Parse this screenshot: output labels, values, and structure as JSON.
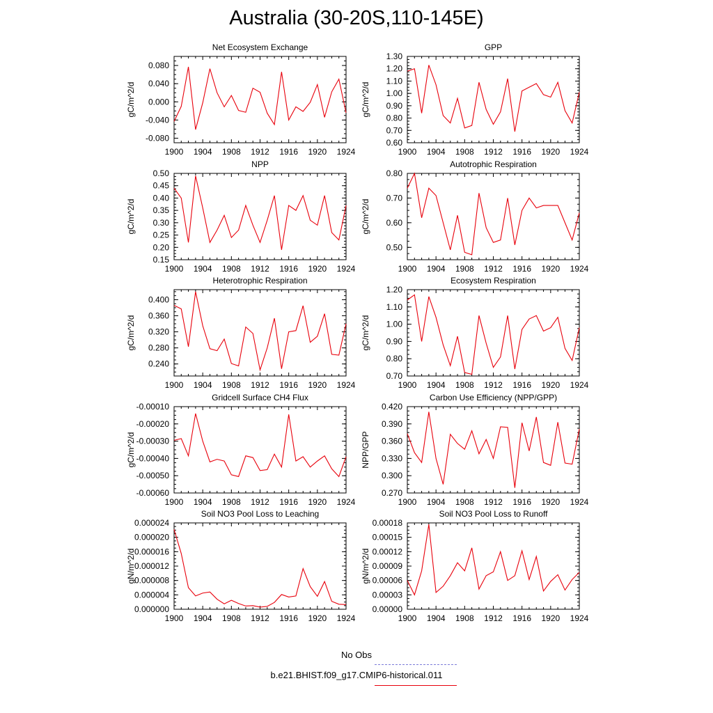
{
  "title": "Australia (30-20S,110-145E)",
  "colors": {
    "series": "#e8000b",
    "obs": "#7b7bd8",
    "axis": "#000000"
  },
  "legend": {
    "placement": "bottom-center",
    "items": [
      {
        "label": "No Obs",
        "style": "dashed",
        "color": "#7b7bd8"
      },
      {
        "label": "b.e21.BHIST.f09_g17.CMIP6-historical.011",
        "style": "solid",
        "color": "#e8000b"
      }
    ]
  },
  "chart_data": [
    {
      "type": "line",
      "title": "Net Ecosystem Exchange",
      "xlabel": "",
      "ylabel": "gC/m^2/d",
      "xlim": [
        1900,
        1924
      ],
      "ylim": [
        -0.09,
        0.1
      ],
      "xticks": [
        "1900",
        "1904",
        "1908",
        "1912",
        "1916",
        "1920",
        "1924"
      ],
      "yticks": [
        "-0.080",
        "-0.040",
        "0.000",
        "0.040",
        "0.080"
      ],
      "grid": false,
      "x": [
        1900,
        1901,
        1902,
        1903,
        1904,
        1905,
        1906,
        1907,
        1908,
        1909,
        1910,
        1911,
        1912,
        1913,
        1914,
        1915,
        1916,
        1917,
        1918,
        1919,
        1920,
        1921,
        1922,
        1923,
        1924
      ],
      "values": [
        -0.043,
        -0.01,
        0.077,
        -0.061,
        -0.002,
        0.073,
        0.02,
        -0.011,
        0.014,
        -0.019,
        -0.023,
        0.03,
        0.021,
        -0.025,
        -0.05,
        0.066,
        -0.04,
        -0.011,
        -0.021,
        -0.001,
        0.038,
        -0.034,
        0.022,
        0.05,
        -0.024
      ]
    },
    {
      "type": "line",
      "title": "GPP",
      "xlabel": "",
      "ylabel": "gC/m^2/d",
      "xlim": [
        1900,
        1924
      ],
      "ylim": [
        0.6,
        1.3
      ],
      "xticks": [
        "1900",
        "1904",
        "1908",
        "1912",
        "1916",
        "1920",
        "1924"
      ],
      "yticks": [
        "0.60",
        "0.70",
        "0.80",
        "0.90",
        "1.00",
        "1.10",
        "1.20",
        "1.30"
      ],
      "grid": false,
      "x": [
        1900,
        1901,
        1902,
        1903,
        1904,
        1905,
        1906,
        1907,
        1908,
        1909,
        1910,
        1911,
        1912,
        1913,
        1914,
        1915,
        1916,
        1917,
        1918,
        1919,
        1920,
        1921,
        1922,
        1923,
        1924
      ],
      "values": [
        1.18,
        1.2,
        0.84,
        1.23,
        1.07,
        0.82,
        0.76,
        0.96,
        0.72,
        0.74,
        1.09,
        0.87,
        0.75,
        0.85,
        1.12,
        0.69,
        1.02,
        1.05,
        1.08,
        0.99,
        0.97,
        1.09,
        0.86,
        0.76,
        1.01
      ]
    },
    {
      "type": "line",
      "title": "NPP",
      "xlabel": "",
      "ylabel": "gC/m^2/d",
      "xlim": [
        1900,
        1924
      ],
      "ylim": [
        0.15,
        0.5
      ],
      "xticks": [
        "1900",
        "1904",
        "1908",
        "1912",
        "1916",
        "1920",
        "1924"
      ],
      "yticks": [
        "0.15",
        "0.20",
        "0.25",
        "0.30",
        "0.35",
        "0.40",
        "0.45",
        "0.50"
      ],
      "grid": false,
      "x": [
        1900,
        1901,
        1902,
        1903,
        1904,
        1905,
        1906,
        1907,
        1908,
        1909,
        1910,
        1911,
        1912,
        1913,
        1914,
        1915,
        1916,
        1917,
        1918,
        1919,
        1920,
        1921,
        1922,
        1923,
        1924
      ],
      "values": [
        0.44,
        0.4,
        0.22,
        0.49,
        0.36,
        0.22,
        0.27,
        0.33,
        0.24,
        0.27,
        0.37,
        0.29,
        0.22,
        0.31,
        0.41,
        0.19,
        0.37,
        0.35,
        0.41,
        0.31,
        0.29,
        0.41,
        0.26,
        0.23,
        0.37
      ]
    },
    {
      "type": "line",
      "title": "Autotrophic Respiration",
      "xlabel": "",
      "ylabel": "gC/m^2/d",
      "xlim": [
        1900,
        1924
      ],
      "ylim": [
        0.45,
        0.8
      ],
      "xticks": [
        "1900",
        "1904",
        "1908",
        "1912",
        "1916",
        "1920",
        "1924"
      ],
      "yticks": [
        "0.50",
        "0.60",
        "0.70",
        "0.80"
      ],
      "grid": false,
      "x": [
        1900,
        1901,
        1902,
        1903,
        1904,
        1905,
        1906,
        1907,
        1908,
        1909,
        1910,
        1911,
        1912,
        1913,
        1914,
        1915,
        1916,
        1917,
        1918,
        1919,
        1920,
        1921,
        1922,
        1923,
        1924
      ],
      "values": [
        0.74,
        0.8,
        0.62,
        0.74,
        0.71,
        0.6,
        0.49,
        0.63,
        0.48,
        0.47,
        0.72,
        0.58,
        0.52,
        0.53,
        0.7,
        0.51,
        0.65,
        0.7,
        0.66,
        0.67,
        0.67,
        0.67,
        0.6,
        0.53,
        0.64
      ]
    },
    {
      "type": "line",
      "title": "Heterotrophic Respiration",
      "xlabel": "",
      "ylabel": "gC/m^2/d",
      "xlim": [
        1900,
        1924
      ],
      "ylim": [
        0.21,
        0.425
      ],
      "xticks": [
        "1900",
        "1904",
        "1908",
        "1912",
        "1916",
        "1920",
        "1924"
      ],
      "yticks": [
        "0.240",
        "0.280",
        "0.320",
        "0.360",
        "0.400"
      ],
      "grid": false,
      "x": [
        1900,
        1901,
        1902,
        1903,
        1904,
        1905,
        1906,
        1907,
        1908,
        1909,
        1910,
        1911,
        1912,
        1913,
        1914,
        1915,
        1916,
        1917,
        1918,
        1919,
        1920,
        1921,
        1922,
        1923,
        1924
      ],
      "values": [
        0.386,
        0.377,
        0.283,
        0.42,
        0.335,
        0.278,
        0.273,
        0.302,
        0.241,
        0.235,
        0.332,
        0.316,
        0.225,
        0.28,
        0.354,
        0.228,
        0.32,
        0.323,
        0.385,
        0.294,
        0.309,
        0.365,
        0.264,
        0.262,
        0.34
      ]
    },
    {
      "type": "line",
      "title": "Ecosystem Respiration",
      "xlabel": "",
      "ylabel": "gC/m^2/d",
      "xlim": [
        1900,
        1924
      ],
      "ylim": [
        0.7,
        1.2
      ],
      "xticks": [
        "1900",
        "1904",
        "1908",
        "1912",
        "1916",
        "1920",
        "1924"
      ],
      "yticks": [
        "0.70",
        "0.80",
        "0.90",
        "1.00",
        "1.10",
        "1.20"
      ],
      "grid": false,
      "x": [
        1900,
        1901,
        1902,
        1903,
        1904,
        1905,
        1906,
        1907,
        1908,
        1909,
        1910,
        1911,
        1912,
        1913,
        1914,
        1915,
        1916,
        1917,
        1918,
        1919,
        1920,
        1921,
        1922,
        1923,
        1924
      ],
      "values": [
        1.14,
        1.17,
        0.9,
        1.16,
        1.04,
        0.88,
        0.76,
        0.93,
        0.72,
        0.71,
        1.05,
        0.89,
        0.75,
        0.81,
        1.05,
        0.74,
        0.97,
        1.03,
        1.05,
        0.96,
        0.98,
        1.04,
        0.86,
        0.79,
        0.98
      ]
    },
    {
      "type": "line",
      "title": "Gridcell Surface CH4 Flux",
      "xlabel": "",
      "ylabel": "gC/m^2/d",
      "xlim": [
        1900,
        1924
      ],
      "ylim": [
        -0.0006,
        -0.0001
      ],
      "xticks": [
        "1900",
        "1904",
        "1908",
        "1912",
        "1916",
        "1920",
        "1924"
      ],
      "yticks": [
        "-0.00060",
        "-0.00050",
        "-0.00040",
        "-0.00030",
        "-0.00020",
        "-0.00010"
      ],
      "grid": false,
      "x": [
        1900,
        1901,
        1902,
        1903,
        1904,
        1905,
        1906,
        1907,
        1908,
        1909,
        1910,
        1911,
        1912,
        1913,
        1914,
        1915,
        1916,
        1917,
        1918,
        1919,
        1920,
        1921,
        1922,
        1923,
        1924
      ],
      "values": [
        -0.000295,
        -0.000285,
        -0.000385,
        -0.00014,
        -0.0003,
        -0.00042,
        -0.000405,
        -0.000415,
        -0.000495,
        -0.000505,
        -0.000385,
        -0.000395,
        -0.00047,
        -0.000465,
        -0.000375,
        -0.00045,
        -0.000145,
        -0.000415,
        -0.00039,
        -0.00045,
        -0.000415,
        -0.000385,
        -0.00046,
        -0.000505,
        -0.00039
      ]
    },
    {
      "type": "line",
      "title": "Carbon Use Efficiency (NPP/GPP)",
      "xlabel": "",
      "ylabel": "NPP/GPP",
      "xlim": [
        1900,
        1924
      ],
      "ylim": [
        0.27,
        0.42
      ],
      "xticks": [
        "1900",
        "1904",
        "1908",
        "1912",
        "1916",
        "1920",
        "1924"
      ],
      "yticks": [
        "0.270",
        "0.300",
        "0.330",
        "0.360",
        "0.390",
        "0.420"
      ],
      "grid": false,
      "x": [
        1900,
        1901,
        1902,
        1903,
        1904,
        1905,
        1906,
        1907,
        1908,
        1909,
        1910,
        1911,
        1912,
        1913,
        1914,
        1915,
        1916,
        1917,
        1918,
        1919,
        1920,
        1921,
        1922,
        1923,
        1924
      ],
      "values": [
        0.373,
        0.34,
        0.323,
        0.411,
        0.33,
        0.285,
        0.372,
        0.356,
        0.346,
        0.378,
        0.338,
        0.363,
        0.33,
        0.385,
        0.384,
        0.279,
        0.392,
        0.343,
        0.402,
        0.323,
        0.318,
        0.393,
        0.322,
        0.32,
        0.381
      ]
    },
    {
      "type": "line",
      "title": "Soil NO3 Pool Loss to Leaching",
      "xlabel": "",
      "ylabel": "gN/m^2/d",
      "xlim": [
        1900,
        1924
      ],
      "ylim": [
        0,
        2.4e-05
      ],
      "xticks": [
        "1900",
        "1904",
        "1908",
        "1912",
        "1916",
        "1920",
        "1924"
      ],
      "yticks": [
        "0.000000",
        "0.000004",
        "0.000008",
        "0.000012",
        "0.000016",
        "0.000020",
        "0.000024"
      ],
      "grid": false,
      "x": [
        1900,
        1901,
        1902,
        1903,
        1904,
        1905,
        1906,
        1907,
        1908,
        1909,
        1910,
        1911,
        1912,
        1913,
        1914,
        1915,
        1916,
        1917,
        1918,
        1919,
        1920,
        1921,
        1922,
        1923,
        1924
      ],
      "values": [
        2.22e-05,
        1.55e-05,
        6e-06,
        3.7e-06,
        4.5e-06,
        4.8e-06,
        2.8e-06,
        1.5e-06,
        2.5e-06,
        1.6e-06,
        9e-07,
        1e-06,
        6e-07,
        8e-07,
        1.9e-06,
        4.1e-06,
        3.4e-06,
        3.7e-06,
        1.13e-05,
        6.3e-06,
        3.6e-06,
        7.7e-06,
        2.2e-06,
        1.4e-06,
        1.3e-06
      ]
    },
    {
      "type": "line",
      "title": "Soil NO3 Pool Loss to Runoff",
      "xlabel": "",
      "ylabel": "gN/m^2/d",
      "xlim": [
        1900,
        1924
      ],
      "ylim": [
        0,
        0.00018
      ],
      "xticks": [
        "1900",
        "1904",
        "1908",
        "1912",
        "1916",
        "1920",
        "1924"
      ],
      "yticks": [
        "0.00000",
        "0.00003",
        "0.00006",
        "0.00009",
        "0.00012",
        "0.00015",
        "0.00018"
      ],
      "grid": false,
      "x": [
        1900,
        1901,
        1902,
        1903,
        1904,
        1905,
        1906,
        1907,
        1908,
        1909,
        1910,
        1911,
        1912,
        1913,
        1914,
        1915,
        1916,
        1917,
        1918,
        1919,
        1920,
        1921,
        1922,
        1923,
        1924
      ],
      "values": [
        6e-05,
        3e-05,
        8e-05,
        0.000177,
        3.5e-05,
        4.8e-05,
        7e-05,
        9.7e-05,
        8e-05,
        0.000128,
        4.2e-05,
        7e-05,
        7.8e-05,
        0.00012,
        6e-05,
        7e-05,
        0.000122,
        6.2e-05,
        0.00011,
        3.8e-05,
        5.8e-05,
        7.2e-05,
        4e-05,
        6.2e-05,
        7.7e-05
      ]
    }
  ]
}
